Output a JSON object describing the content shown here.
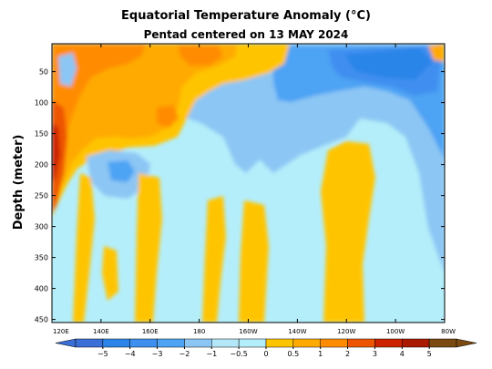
{
  "chart_data": {
    "type": "heatmap",
    "title": "Equatorial Temperature Anomaly (°C)",
    "subtitle": "Pentad centered on 13 MAY 2024",
    "ylabel": "Depth (meter)",
    "xlabel": "",
    "x_ticks": [
      "120E",
      "140E",
      "160E",
      "180",
      "160W",
      "140W",
      "120W",
      "100W",
      "80W"
    ],
    "x_tick_lon": [
      120,
      140,
      160,
      180,
      200,
      220,
      240,
      260,
      280
    ],
    "xlim": [
      120,
      280
    ],
    "y_ticks": [
      50,
      100,
      150,
      200,
      250,
      300,
      350,
      400,
      450
    ],
    "ylim": [
      455,
      5
    ],
    "y_inverted": true,
    "colorbar": {
      "levels": [
        -5,
        -4,
        -3,
        -2,
        -1,
        -0.5,
        0,
        0.5,
        1,
        2,
        3,
        4,
        5
      ],
      "tick_labels": [
        "−5",
        "−4",
        "−3",
        "−2",
        "−1",
        "−0.5",
        "0",
        "0.5",
        "1",
        "2",
        "3",
        "4",
        "5"
      ],
      "colors": [
        "#3a6fd8",
        "#2b85e8",
        "#3f8ff0",
        "#4ea3f4",
        "#8cc6f4",
        "#b4e8f8",
        "#b4eefa",
        "#ffc400",
        "#ffaa00",
        "#ff8c00",
        "#ee5500",
        "#cc2200",
        "#aa1a00",
        "#7a4a10"
      ],
      "under_color": "#3a6fd8",
      "over_color": "#7a4a10"
    },
    "background_category": "0 to -0.5",
    "features": [
      {
        "category": "0 to 0.5 / 0.5 to 1",
        "lon_range": [
          120,
          200
        ],
        "depth_range": [
          5,
          130
        ],
        "note": "warm upper layer west of 160W"
      },
      {
        "category": "1 to 2",
        "lon_range": [
          120,
          180
        ],
        "depth_range": [
          5,
          90
        ],
        "note": "warm patches near surface"
      },
      {
        "category": "2 to 4",
        "lon_range": [
          120,
          126
        ],
        "depth_range": [
          110,
          240
        ],
        "note": "strongest warm anomaly off 120E"
      },
      {
        "category": "-0.5 to -3",
        "lon_range": [
          190,
          280
        ],
        "depth_range": [
          5,
          200
        ],
        "note": "cold tongue rising eastward"
      },
      {
        "category": "-2 to -3",
        "lon_range": [
          235,
          270
        ],
        "depth_range": [
          20,
          110
        ],
        "note": "cold core east Pacific"
      },
      {
        "category": "0 to 0.5",
        "lon_range": [
          150,
          162
        ],
        "depth_range": [
          170,
          455
        ],
        "note": "warm column"
      },
      {
        "category": "0 to 0.5",
        "lon_range": [
          170,
          182
        ],
        "depth_range": [
          240,
          455
        ],
        "note": "warm column"
      },
      {
        "category": "0 to 0.5",
        "lon_range": [
          230,
          250
        ],
        "depth_range": [
          160,
          455
        ],
        "note": "warm column"
      }
    ]
  }
}
